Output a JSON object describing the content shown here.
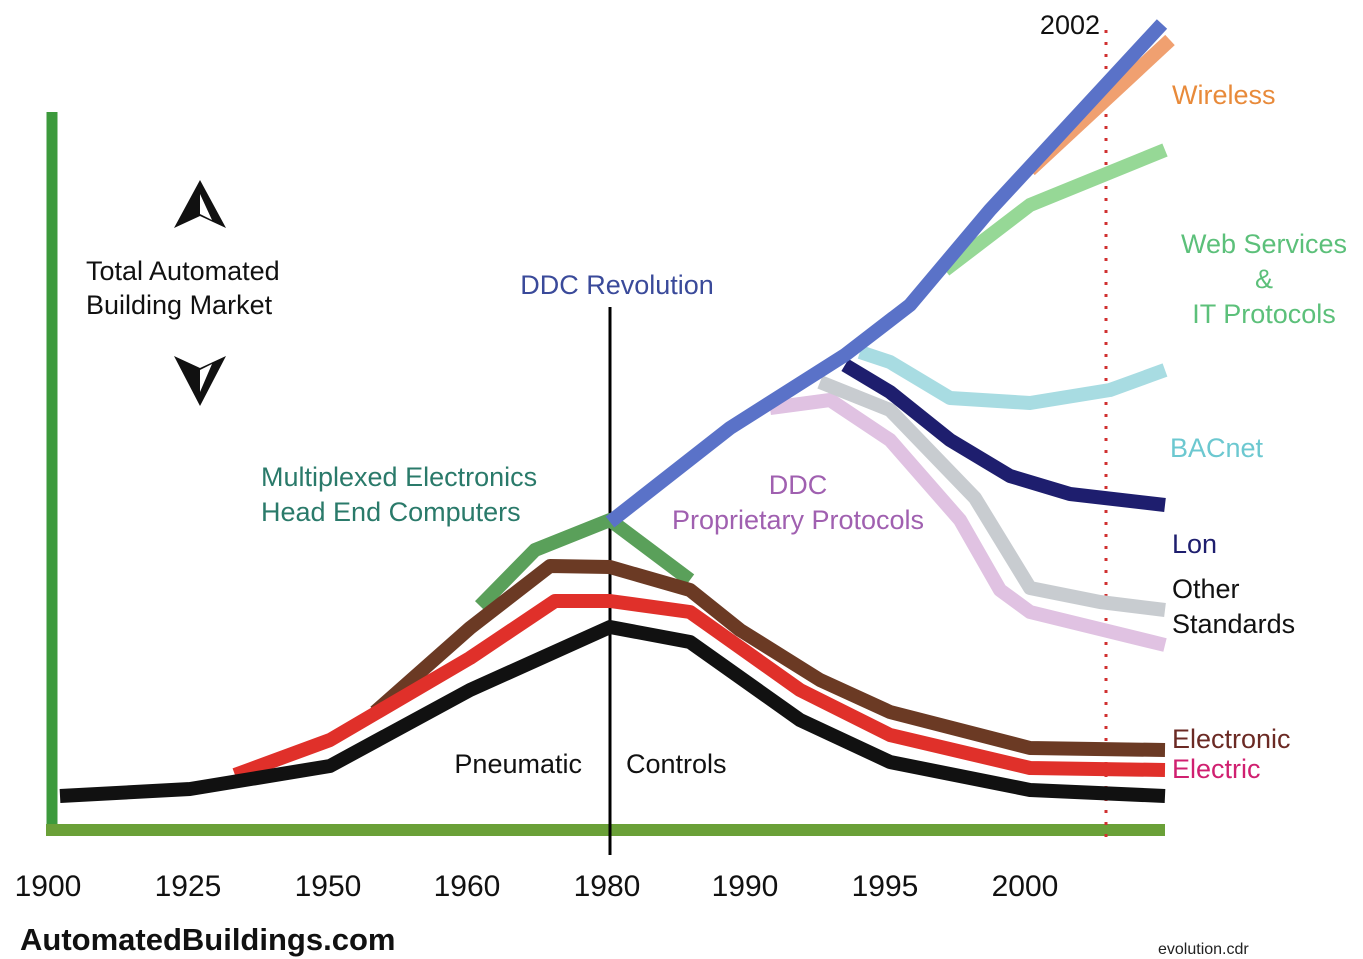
{
  "x_axis": {
    "labels": [
      "1900",
      "1925",
      "1950",
      "1960",
      "1980",
      "1990",
      "1995",
      "2000"
    ]
  },
  "annotations": {
    "year_marker": "2002",
    "market": [
      "Total Automated",
      "Building Market"
    ],
    "ddc_revolution": "DDC Revolution",
    "multiplexed": [
      "Multiplexed Electronics",
      "Head End Computers"
    ],
    "ddc_proprietary": [
      "DDC",
      "Proprietary Protocols"
    ],
    "pneumatic": "Pneumatic",
    "controls": "Controls"
  },
  "series_labels": {
    "wireless": "Wireless",
    "web_services": [
      "Web Services",
      "&",
      "IT Protocols"
    ],
    "bacnet": "BACnet",
    "lon": "Lon",
    "other_standards": [
      "Other",
      "Standards"
    ],
    "electronic": "Electronic",
    "electric": "Electric"
  },
  "footer": {
    "site": "AutomatedBuildings.com",
    "file": "evolution.cdr"
  }
}
